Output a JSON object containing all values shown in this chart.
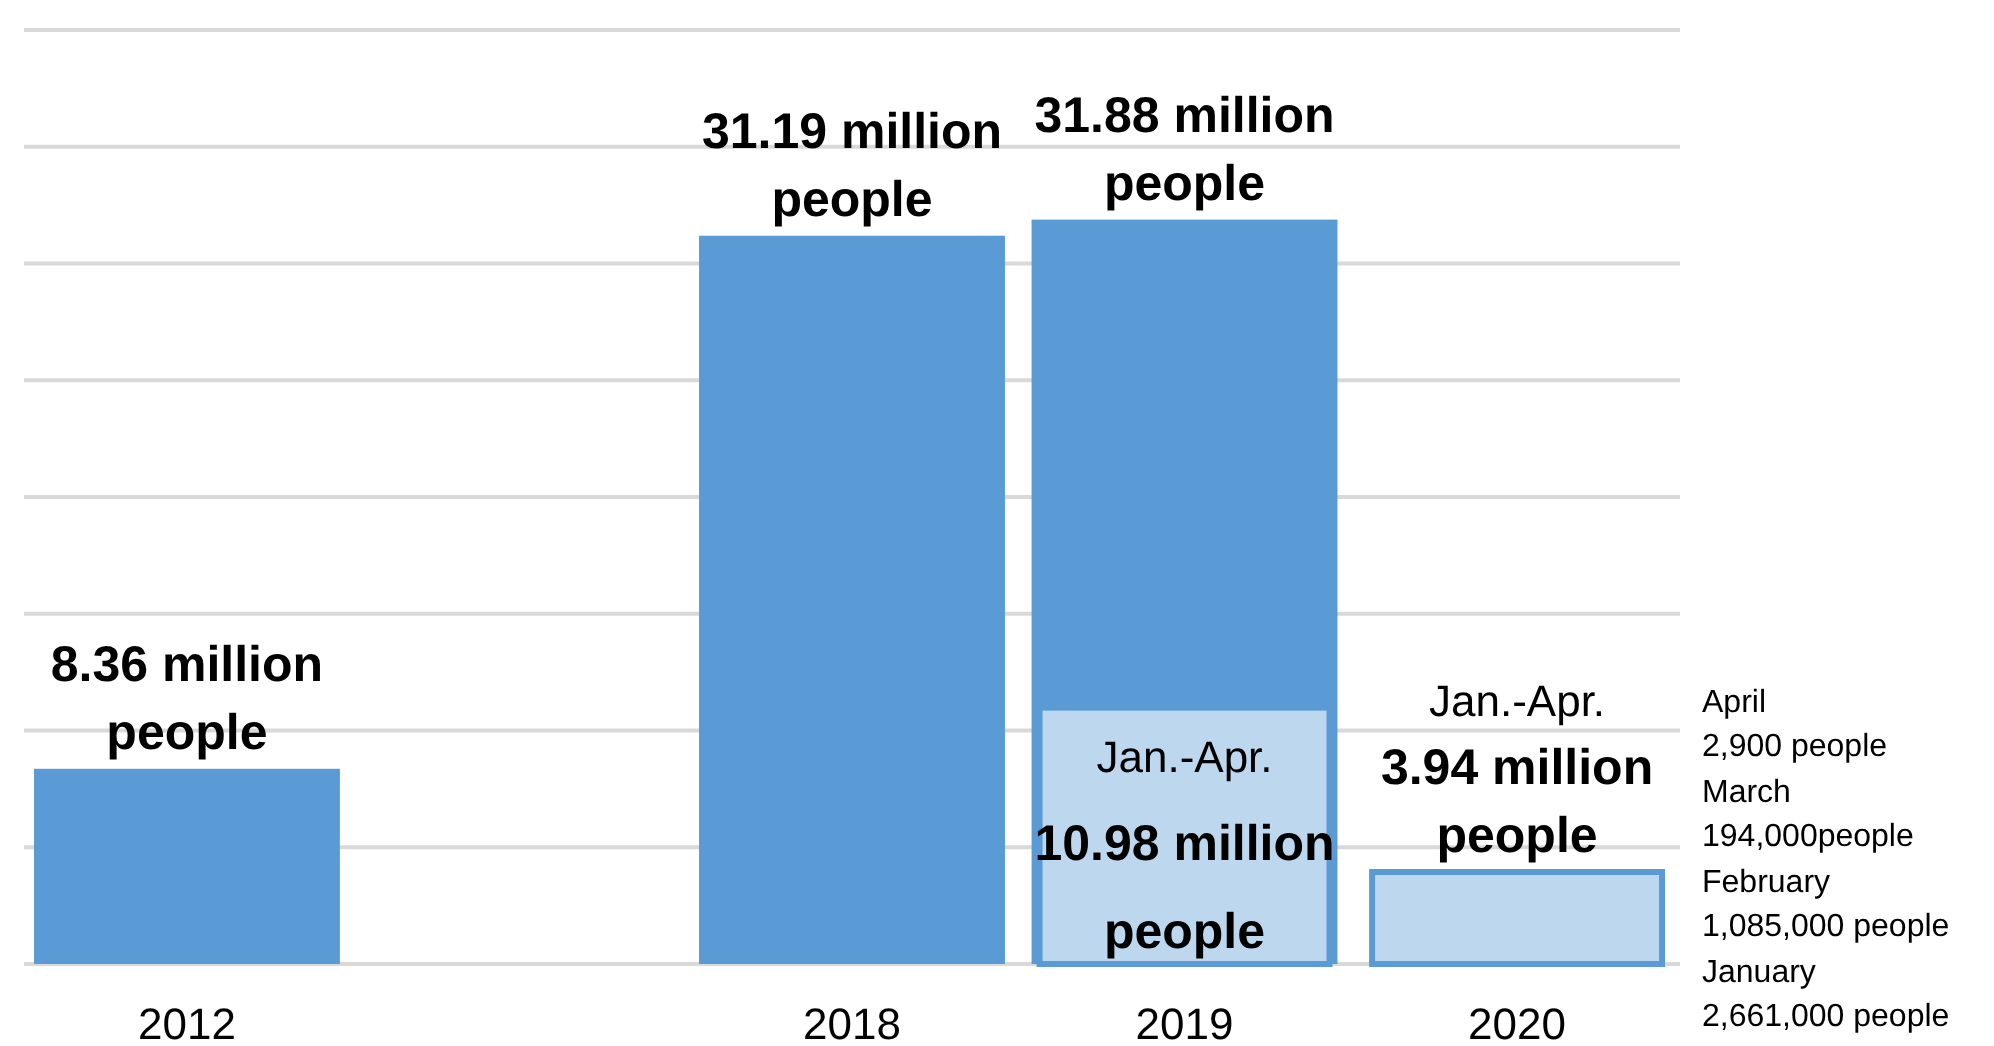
{
  "chart_data": {
    "type": "bar",
    "categories": [
      "2012",
      null,
      "2018",
      "2019",
      "2020"
    ],
    "series": [
      {
        "color": "#5b9bd5",
        "values": [
          8.36,
          null,
          31.19,
          31.88,
          null
        ],
        "value_labels": [
          "8.36 million\npeople",
          null,
          "31.19 million\npeople",
          "31.88 million\npeople",
          null
        ]
      },
      {
        "color": "#bdd7ee",
        "values": [
          null,
          null,
          null,
          10.98,
          3.94
        ],
        "value_labels": [
          null,
          null,
          null,
          "Jan.-Apr.\n10.98 million\npeople",
          "Jan.-Apr.\n3.94 million\npeople"
        ]
      }
    ],
    "ylim": [
      0,
      40
    ],
    "yticks": [
      {
        "value": 0,
        "label": null
      },
      {
        "value": 5,
        "label": null
      },
      {
        "value": 10,
        "label": null
      },
      {
        "value": 15,
        "label": null
      },
      {
        "value": 20,
        "label": null
      },
      {
        "value": 25,
        "label": null
      },
      {
        "value": 30,
        "label": null
      },
      {
        "value": 35,
        "label": null
      },
      {
        "value": 40,
        "label": null
      }
    ],
    "grid": "y",
    "tick_labels": "x",
    "annotations": [
      "April\n2,900 people",
      "March\n194,000people",
      "February\n1,085,000 people",
      "January\n2,661,000 people"
    ]
  }
}
